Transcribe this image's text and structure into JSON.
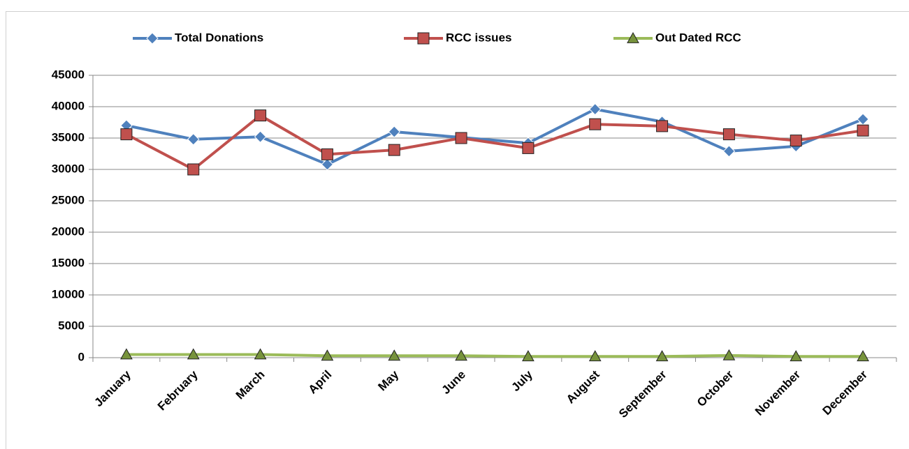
{
  "chart_data": {
    "type": "line",
    "categories": [
      "January",
      "February",
      "March",
      "April",
      "May",
      "June",
      "July",
      "August",
      "September",
      "October",
      "November",
      "December"
    ],
    "series": [
      {
        "name": "Total Donations",
        "color": "#4f81bd",
        "marker": "diamond",
        "values": [
          37000,
          34800,
          35200,
          30800,
          36000,
          35100,
          34200,
          39600,
          37600,
          32900,
          33700,
          38000
        ]
      },
      {
        "name": "RCC issues",
        "color": "#c0504d",
        "marker": "square",
        "values": [
          35600,
          30000,
          38600,
          32400,
          33100,
          35000,
          33400,
          37200,
          36900,
          35600,
          34600,
          36200
        ]
      },
      {
        "name": "Out Dated RCC",
        "color": "#9bbb59",
        "marker": "triangle",
        "values": [
          500,
          500,
          500,
          300,
          300,
          300,
          200,
          200,
          200,
          350,
          200,
          200
        ]
      }
    ],
    "ylim": [
      0,
      45000
    ],
    "yticks": [
      0,
      5000,
      10000,
      15000,
      20000,
      25000,
      30000,
      35000,
      40000,
      45000
    ],
    "grid": true,
    "legend": "top"
  }
}
